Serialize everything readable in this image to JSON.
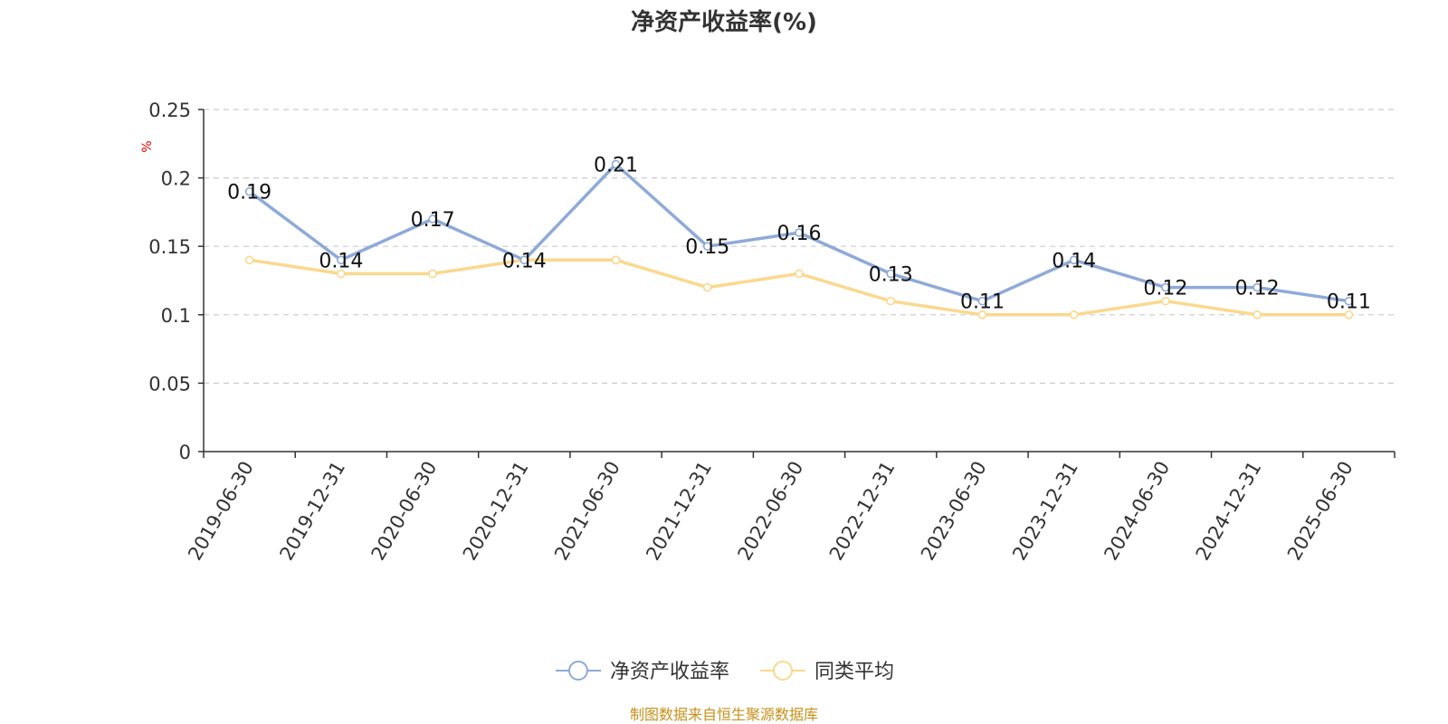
{
  "chart_data": {
    "type": "line",
    "title": "净资产收益率(%)",
    "ylabel": "%",
    "xlabel": "",
    "ylim": [
      0,
      0.25
    ],
    "yticks": [
      "0",
      "0.05",
      "0.1",
      "0.15",
      "0.2",
      "0.25"
    ],
    "categories": [
      "2019-06-30",
      "2019-12-31",
      "2020-06-30",
      "2020-12-31",
      "2021-06-30",
      "2021-12-31",
      "2022-06-30",
      "2022-12-31",
      "2023-06-30",
      "2023-12-31",
      "2024-06-30",
      "2024-12-31",
      "2025-06-30"
    ],
    "series": [
      {
        "name": "净资产收益率",
        "color": "#8eaad8",
        "values": [
          0.19,
          0.14,
          0.17,
          0.14,
          0.21,
          0.15,
          0.16,
          0.13,
          0.11,
          0.14,
          0.12,
          0.12,
          0.11
        ],
        "labels": [
          "0.19",
          "0.14",
          "0.17",
          "0.14",
          "0.21",
          "0.15",
          "0.16",
          "0.13",
          "0.11",
          "0.14",
          "0.12",
          "0.12",
          "0.11"
        ]
      },
      {
        "name": "同类平均",
        "color": "#fbd88e",
        "values": [
          0.14,
          0.13,
          0.13,
          0.14,
          0.14,
          0.12,
          0.13,
          0.11,
          0.1,
          0.1,
          0.11,
          0.1,
          0.1
        ]
      }
    ],
    "grid": true,
    "legend_position": "bottom-center"
  },
  "source_note": "制图数据来自恒生聚源数据库"
}
